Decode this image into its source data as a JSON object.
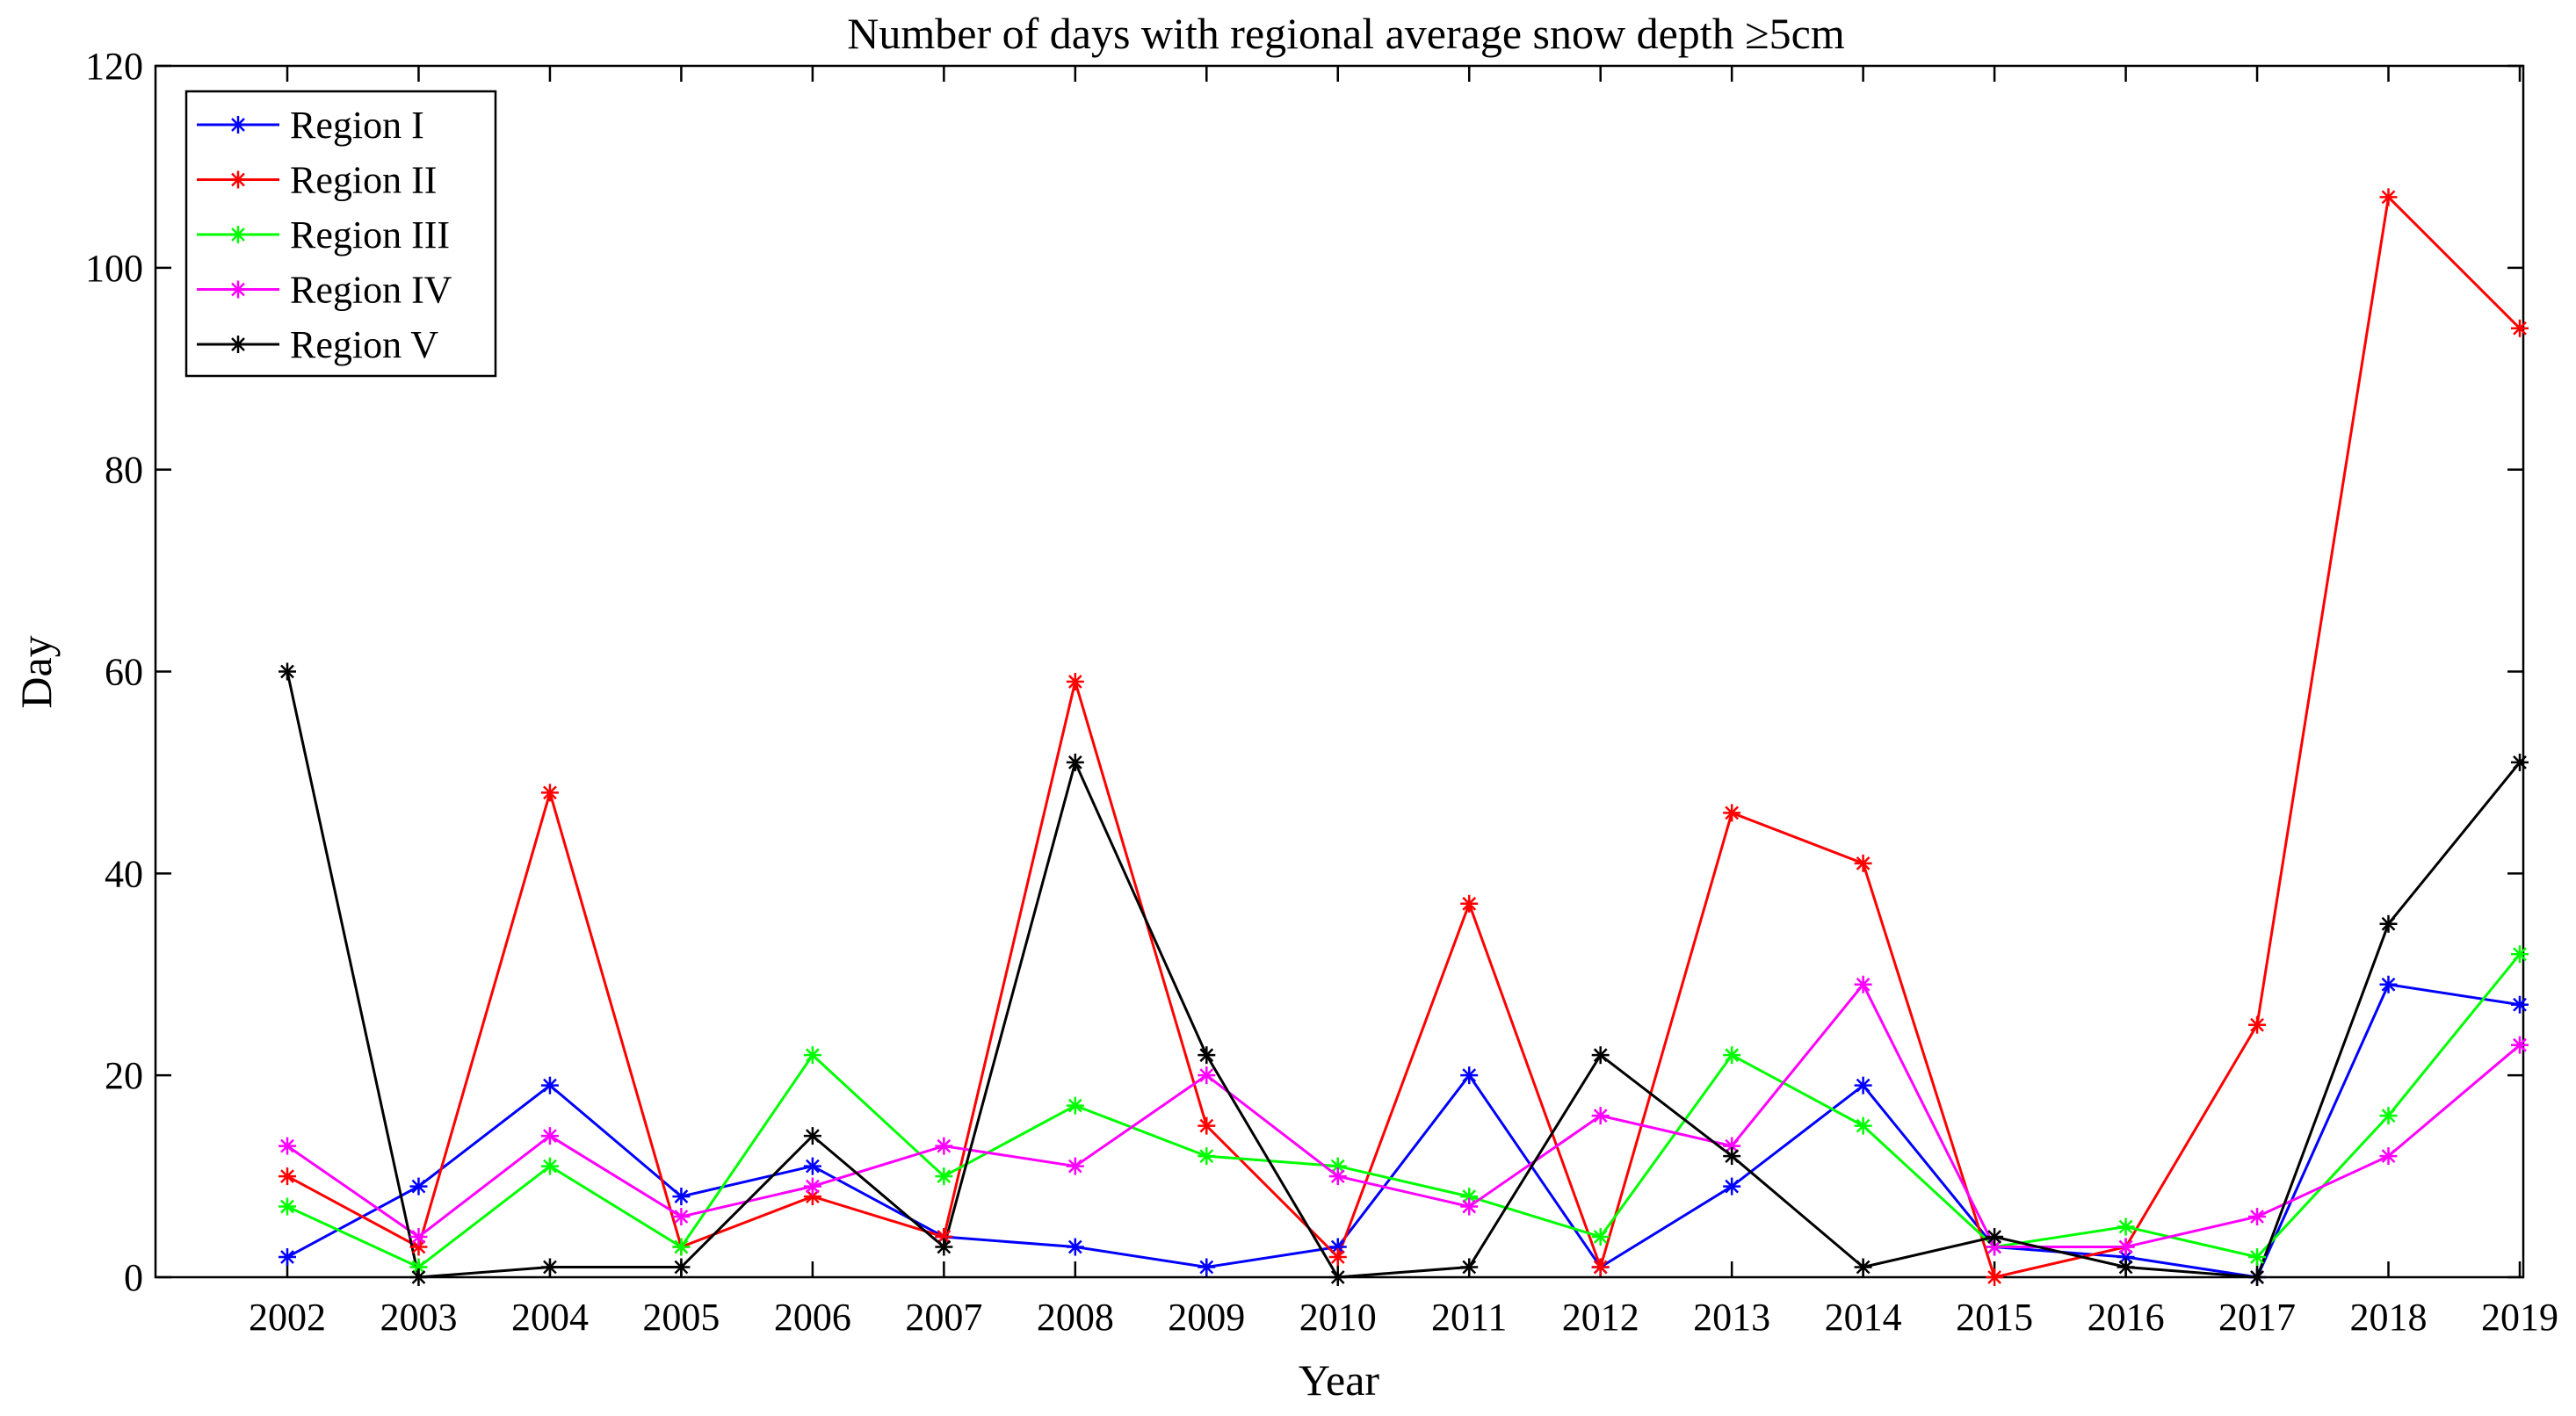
{
  "chart_data": {
    "type": "line",
    "title": "Number of days with regional average snow depth ≥5cm",
    "xlabel": "Year",
    "ylabel": "Day",
    "x": [
      2002,
      2003,
      2004,
      2005,
      2006,
      2007,
      2008,
      2009,
      2010,
      2011,
      2012,
      2013,
      2014,
      2015,
      2016,
      2017,
      2018,
      2019
    ],
    "ylim": [
      0,
      120
    ],
    "yticks": [
      0,
      20,
      40,
      60,
      80,
      100,
      120
    ],
    "legend_position": "top-left",
    "grid": false,
    "marker": "asterisk",
    "series": [
      {
        "name": "Region I",
        "color": "#0000ff",
        "values": [
          2,
          9,
          19,
          8,
          11,
          4,
          3,
          1,
          3,
          20,
          1,
          9,
          19,
          3,
          2,
          0,
          29,
          27
        ]
      },
      {
        "name": "Region II",
        "color": "#ff0000",
        "values": [
          10,
          3,
          48,
          3,
          8,
          4,
          59,
          15,
          2,
          37,
          1,
          46,
          41,
          0,
          3,
          25,
          107,
          94
        ]
      },
      {
        "name": "Region III",
        "color": "#00ff00",
        "values": [
          7,
          1,
          11,
          3,
          22,
          10,
          17,
          12,
          11,
          8,
          4,
          22,
          15,
          3,
          5,
          2,
          16,
          32
        ]
      },
      {
        "name": "Region IV",
        "color": "#ff00ff",
        "values": [
          13,
          4,
          14,
          6,
          9,
          13,
          11,
          20,
          10,
          7,
          16,
          13,
          29,
          3,
          3,
          6,
          12,
          23
        ]
      },
      {
        "name": "Region V",
        "color": "#000000",
        "values": [
          60,
          0,
          1,
          1,
          14,
          3,
          51,
          22,
          0,
          1,
          22,
          12,
          1,
          4,
          1,
          0,
          35,
          51
        ]
      }
    ]
  }
}
